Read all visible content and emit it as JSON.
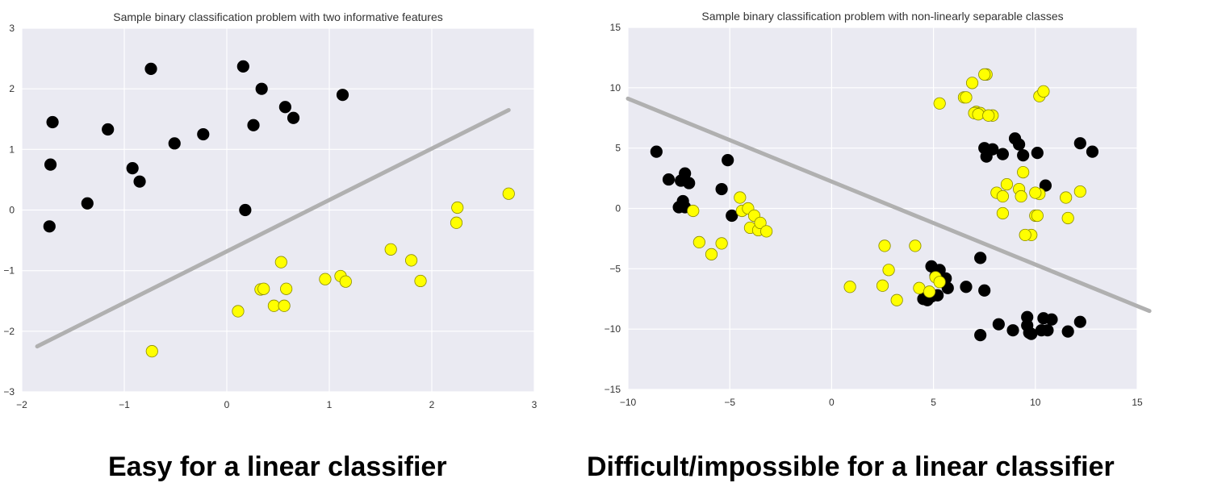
{
  "captions": {
    "left": "Easy for a linear classifier",
    "right": "Difficult/impossible for a linear classifier"
  },
  "chart_data": [
    {
      "type": "scatter",
      "title": "Sample binary classification problem with two informative features",
      "xlabel": "",
      "ylabel": "",
      "xlim": [
        -2,
        3
      ],
      "ylim": [
        -3,
        3
      ],
      "xticks": [
        -2,
        -1,
        0,
        1,
        2,
        3
      ],
      "yticks": [
        -3,
        -2,
        -1,
        0,
        1,
        2,
        3
      ],
      "grid": true,
      "background": "#eaeaf2",
      "decision_line": {
        "x": [
          -1.85,
          2.75
        ],
        "y": [
          -2.25,
          1.65
        ],
        "color": "#b0b0b0"
      },
      "series": [
        {
          "color": "#000000",
          "x": [
            -0.74,
            0.16,
            0.34,
            -1.7,
            -1.16,
            -0.51,
            -0.23,
            0.26,
            0.57,
            0.65,
            1.13,
            -1.72,
            -0.92,
            -0.85,
            -1.36,
            -1.73,
            0.18
          ],
          "y": [
            2.33,
            2.37,
            2.0,
            1.45,
            1.33,
            1.1,
            1.25,
            1.4,
            1.7,
            1.52,
            1.9,
            0.75,
            0.69,
            0.47,
            0.11,
            -0.27,
            0.0
          ]
        },
        {
          "color": "#ffff00",
          "x": [
            -0.73,
            0.11,
            0.33,
            0.36,
            0.46,
            0.53,
            0.56,
            0.58,
            0.96,
            1.11,
            1.16,
            1.6,
            1.8,
            1.89,
            2.25,
            2.24,
            2.75
          ],
          "y": [
            -2.33,
            -1.67,
            -1.31,
            -1.3,
            -1.58,
            -0.86,
            -1.58,
            -1.3,
            -1.14,
            -1.09,
            -1.18,
            -0.65,
            -0.83,
            -1.17,
            0.04,
            -0.21,
            0.27
          ]
        }
      ]
    },
    {
      "type": "scatter",
      "title": "Sample binary classification problem with non-linearly separable classes",
      "xlabel": "",
      "ylabel": "",
      "xlim": [
        -10,
        15
      ],
      "ylim": [
        -15,
        15
      ],
      "xticks": [
        -10,
        -5,
        0,
        5,
        10,
        15
      ],
      "yticks": [
        -15,
        -10,
        -5,
        0,
        5,
        10,
        15
      ],
      "grid": true,
      "background": "#eaeaf2",
      "decision_line": {
        "x": [
          -10,
          15.6
        ],
        "y": [
          9.1,
          -8.5
        ],
        "color": "#b0b0b0"
      },
      "series": [
        {
          "color": "#000000",
          "x": [
            -8.6,
            -8.0,
            -7.4,
            -7.2,
            -7.0,
            -7.3,
            -7.5,
            -7.2,
            -5.4,
            -5.1,
            -4.9,
            4.9,
            5.3,
            5.6,
            5.1,
            5.4,
            5.7,
            4.9,
            4.5,
            4.7,
            5.2,
            6.6,
            7.3,
            7.5,
            8.2,
            8.9,
            9.6,
            9.7,
            9.8,
            10.3,
            10.4,
            10.6,
            10.8,
            11.6,
            12.2,
            7.3,
            7.5,
            7.6,
            7.9,
            8.4,
            9.0,
            9.2,
            9.4,
            10.1,
            12.2,
            12.8,
            10.5,
            9.6
          ],
          "y": [
            4.7,
            2.4,
            2.3,
            2.9,
            2.1,
            0.6,
            0.1,
            0.1,
            1.6,
            4.0,
            -0.6,
            -4.8,
            -5.1,
            -5.8,
            -5.6,
            -6.0,
            -6.6,
            -7.3,
            -7.5,
            -7.6,
            -7.2,
            -6.5,
            -4.1,
            -6.8,
            -9.6,
            -10.1,
            -9.7,
            -10.3,
            -10.4,
            -10.1,
            -9.1,
            -10.1,
            -9.2,
            -10.2,
            -9.4,
            -10.5,
            5.0,
            4.3,
            4.9,
            4.5,
            5.8,
            5.3,
            4.4,
            4.6,
            5.4,
            4.7,
            1.9,
            -9.0
          ]
        },
        {
          "color": "#ffff00",
          "x": [
            -6.8,
            -6.5,
            -5.9,
            -5.4,
            -4.5,
            -4.4,
            -4.1,
            -4.0,
            -3.8,
            -3.6,
            -3.5,
            -3.2,
            0.9,
            2.5,
            2.6,
            2.8,
            3.2,
            4.1,
            4.3,
            4.8,
            5.1,
            5.3,
            6.9,
            7.1,
            7.3,
            7.6,
            7.9,
            8.1,
            8.4,
            8.6,
            9.2,
            9.4,
            9.8,
            10.0,
            10.2,
            10.2,
            10.4,
            11.5,
            11.6,
            12.2,
            5.3,
            6.5,
            6.6,
            7.0,
            7.2,
            7.5,
            7.7,
            9.3,
            10.0,
            10.1,
            9.5,
            8.4
          ],
          "y": [
            -0.2,
            -2.8,
            -3.8,
            -2.9,
            0.9,
            -0.2,
            0.0,
            -1.6,
            -0.6,
            -1.8,
            -1.2,
            -1.9,
            -6.5,
            -6.4,
            -3.1,
            -5.1,
            -7.6,
            -3.1,
            -6.6,
            -6.9,
            -5.7,
            -6.1,
            10.4,
            8.0,
            7.9,
            11.1,
            7.7,
            1.3,
            1.0,
            2.0,
            1.6,
            3.0,
            -2.2,
            -0.6,
            1.2,
            9.3,
            9.7,
            0.9,
            -0.8,
            1.4,
            8.7,
            9.2,
            9.2,
            7.9,
            7.8,
            11.1,
            7.7,
            1.0,
            1.3,
            -0.6,
            -2.2,
            -0.4
          ]
        }
      ]
    }
  ]
}
